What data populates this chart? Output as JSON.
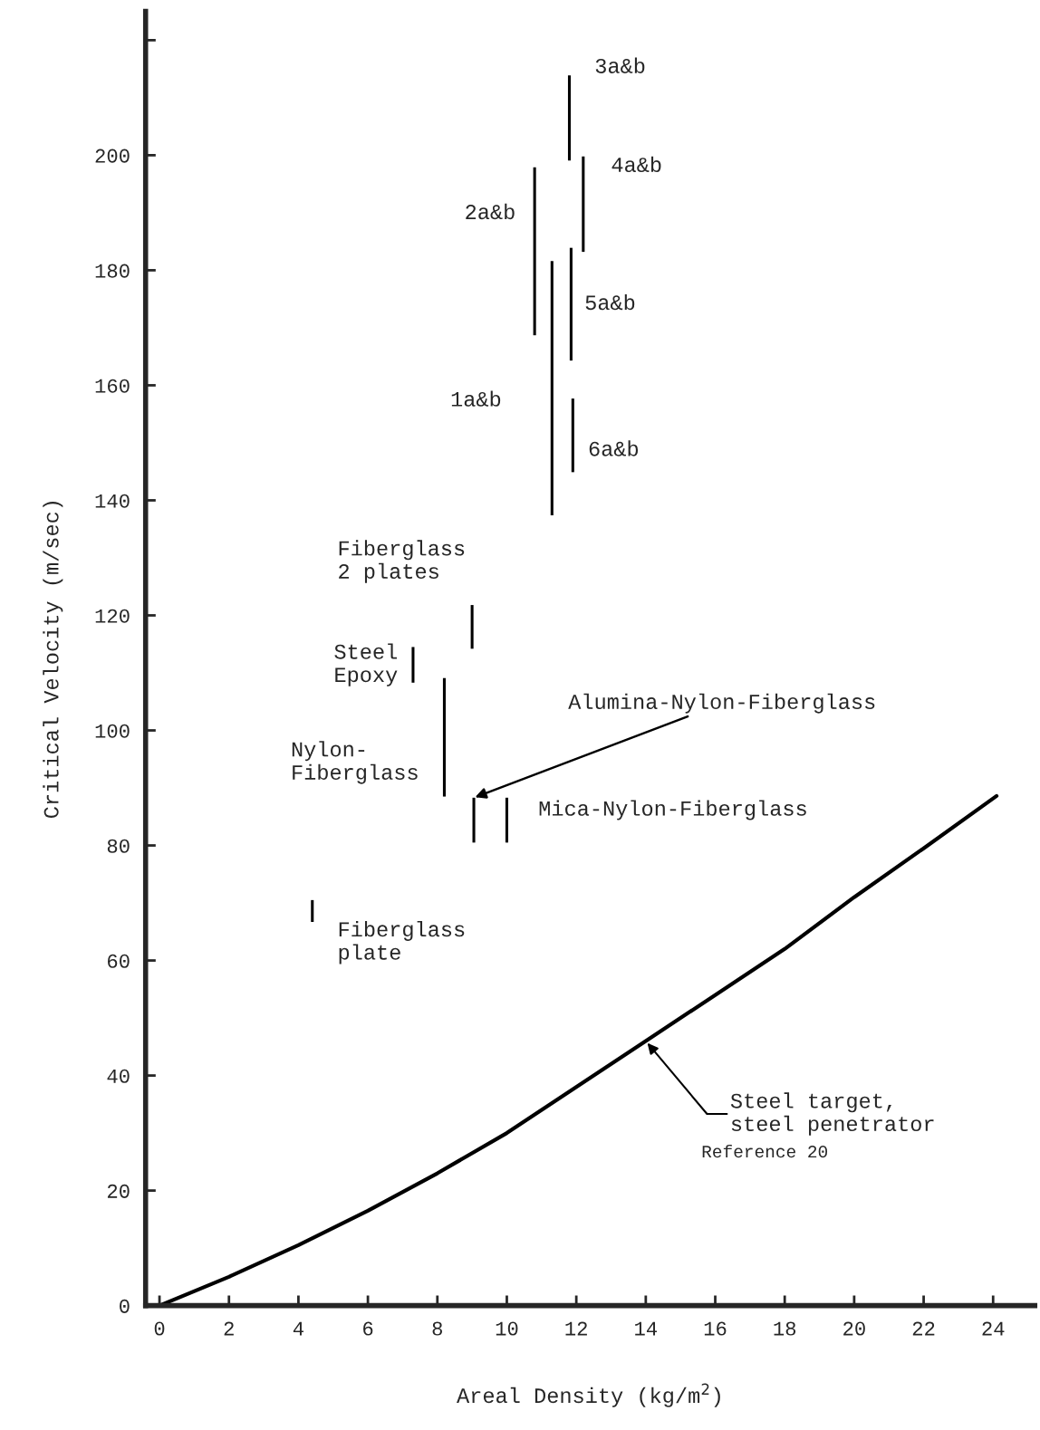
{
  "chart_data": {
    "type": "bar",
    "xlabel": "Areal Density (kg/m$^{2}$)",
    "ylabel": "Critical Velocity (m/sec)",
    "xlim": [
      -0.4,
      25.2
    ],
    "ylim": [
      0,
      225
    ],
    "xticks": [
      0,
      2,
      4,
      6,
      8,
      10,
      12,
      14,
      16,
      18,
      20,
      22,
      24
    ],
    "yticks": [
      0,
      20,
      40,
      60,
      80,
      100,
      120,
      140,
      160,
      180,
      200,
      {
        "value": 220,
        "label": null
      }
    ],
    "grid": false,
    "legend": false,
    "marker": "none",
    "series": [
      {
        "color": "#000000",
        "x": [
          4.4,
          7.3,
          8.2,
          9.0,
          9.05,
          10.0,
          10.8,
          11.3,
          11.8,
          11.85,
          11.9,
          12.2
        ],
        "base": [
          66.7,
          108.3,
          88.5,
          114.2,
          80.5,
          80.5,
          168.7,
          137.4,
          199.1,
          164.3,
          144.9,
          183.2
        ],
        "values": [
          3.8,
          6.2,
          20.6,
          7.6,
          7.8,
          7.8,
          29.2,
          44.2,
          14.8,
          19.6,
          12.8,
          16.6
        ]
      },
      {
        "type": "line",
        "color": "#000000",
        "line_style": "solid",
        "x": [
          0,
          2,
          4,
          6,
          8,
          10,
          12,
          14,
          16,
          18,
          20,
          22,
          24.1
        ],
        "values": [
          0,
          5,
          10.5,
          16.5,
          23,
          30,
          38,
          46,
          54,
          62,
          71,
          79.5,
          88.6
        ]
      }
    ],
    "annotations": [
      {
        "text": "3a&b",
        "x": 11.8,
        "y": 206.5
      },
      {
        "text": "4a&b",
        "x": 12.2,
        "y": 191.5
      },
      {
        "text": "2a&b",
        "x": 10.8,
        "y": 183.3
      },
      {
        "text": "1a&b",
        "x": 11.3,
        "y": 159.5
      },
      {
        "text": "5a&b",
        "x": 11.8,
        "y": 174.1
      },
      {
        "text": "6a&b",
        "x": 11.9,
        "y": 151.3
      },
      {
        "text": "Fiberglass\n2 plates",
        "x": 9.0,
        "y": 118.0
      },
      {
        "text": "Steel\nEpoxy",
        "x": 7.3,
        "y": 111.4
      },
      {
        "text": "Nylon-\nFiberglass",
        "x": 8.2,
        "y": 98.8
      },
      {
        "text": "Alumina-Nylon-Fiberglass",
        "x": 9.05,
        "y": 88.3
      },
      {
        "text": "Mica-Nylon-Fiberglass",
        "x": 10.0,
        "y": 84.4
      },
      {
        "text": "Fiberglass\nplate",
        "x": 4.4,
        "y": 68.6
      },
      {
        "text": "Steel target,\nsteel penetrator",
        "x": 14,
        "y": 46
      },
      "Reference 20"
    ]
  }
}
